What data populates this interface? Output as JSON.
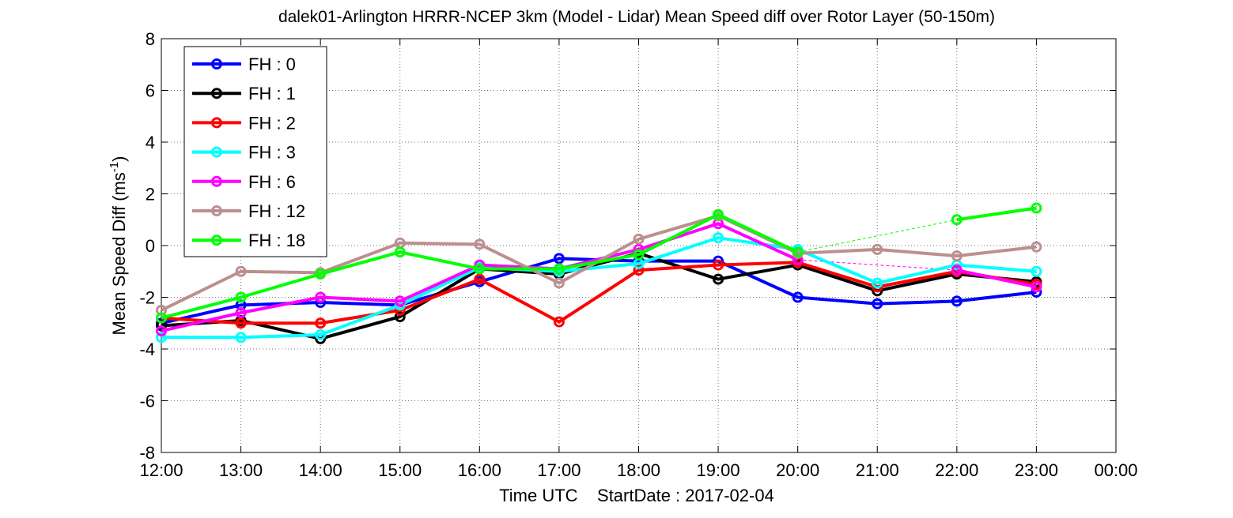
{
  "chart_data": {
    "type": "line",
    "title": "dalek01-Arlington HRRR-NCEP 3km (Model - Lidar) Mean Speed diff over Rotor Layer (50-150m)",
    "xlabel": "Time UTC    StartDate : 2017-02-04",
    "ylabel_main": "Mean Speed Diff (ms",
    "ylabel_sup": "-1",
    "ylabel_close": ")",
    "x_ticks": [
      "12:00",
      "13:00",
      "14:00",
      "15:00",
      "16:00",
      "17:00",
      "18:00",
      "19:00",
      "20:00",
      "21:00",
      "22:00",
      "23:00",
      "00:00"
    ],
    "xlim": [
      0,
      12
    ],
    "y_ticks": [
      "-8",
      "-6",
      "-4",
      "-2",
      "0",
      "2",
      "4",
      "6",
      "8"
    ],
    "ylim": [
      -8,
      8
    ],
    "grid": true,
    "legend_position": "top-left",
    "series": [
      {
        "name": "FH : 0",
        "color": "#0000ff",
        "values": [
          -3.0,
          -2.3,
          -2.2,
          -2.3,
          -1.4,
          -0.5,
          -0.6,
          -0.6,
          -2.0,
          -2.25,
          -2.15,
          -1.8
        ]
      },
      {
        "name": "FH : 1",
        "color": "#000000",
        "values": [
          -3.1,
          -2.9,
          -3.6,
          -2.75,
          -0.9,
          -1.1,
          -0.3,
          -1.3,
          -0.75,
          -1.75,
          -1.1,
          -1.4
        ]
      },
      {
        "name": "FH : 2",
        "color": "#ff0000",
        "values": [
          -2.8,
          -3.0,
          -3.0,
          -2.5,
          -1.3,
          -2.95,
          -0.95,
          -0.75,
          -0.65,
          -1.6,
          -1.0,
          -1.5
        ]
      },
      {
        "name": "FH : 3",
        "color": "#00ffff",
        "values": [
          -3.55,
          -3.55,
          -3.45,
          -2.3,
          -0.85,
          -1.0,
          -0.7,
          0.3,
          -0.15,
          -1.45,
          -0.75,
          -1.0
        ]
      },
      {
        "name": "FH : 6",
        "color": "#ff00ff",
        "values": [
          -3.3,
          -2.6,
          -2.0,
          -2.15,
          -0.75,
          -0.9,
          -0.15,
          0.85,
          -0.55,
          null,
          -0.95,
          -1.6
        ]
      },
      {
        "name": "FH : 12",
        "color": "#bc8f8f",
        "values": [
          -2.5,
          -1.0,
          -1.05,
          0.1,
          0.05,
          -1.45,
          0.25,
          1.15,
          -0.3,
          -0.15,
          -0.4,
          -0.05
        ]
      },
      {
        "name": "FH : 18",
        "color": "#00ff00",
        "values": [
          -2.8,
          -2.0,
          -1.1,
          -0.25,
          -0.9,
          -0.9,
          -0.35,
          1.2,
          -0.25,
          null,
          1.0,
          1.45
        ]
      }
    ]
  }
}
